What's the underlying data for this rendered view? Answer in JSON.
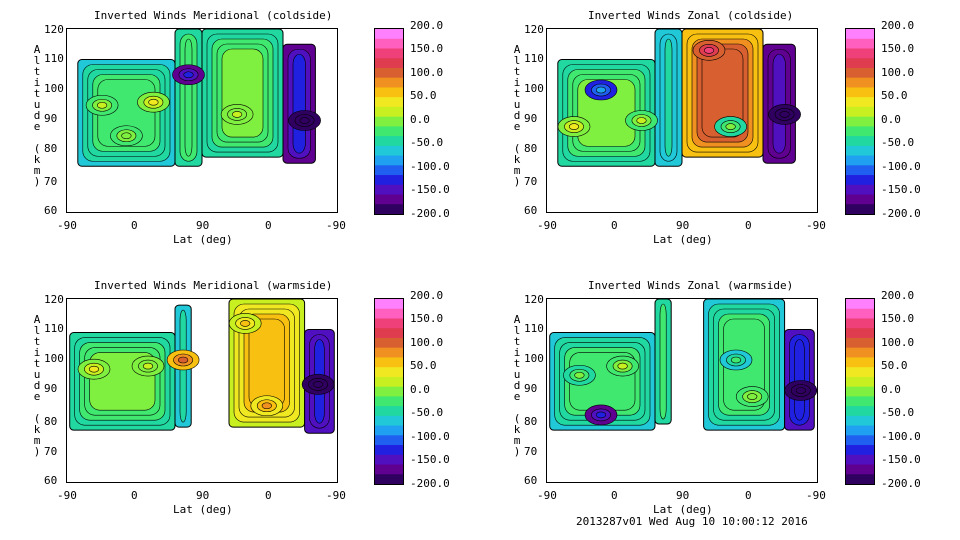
{
  "colorbar_levels": [
    "200.0",
    "150.0",
    "100.0",
    "50.0",
    "0.0",
    "-50.0",
    "-100.0",
    "-150.0",
    "-200.0"
  ],
  "colorbar_colors": [
    "#ff80ff",
    "#ff60c0",
    "#f0407a",
    "#e03c50",
    "#d86030",
    "#f09020",
    "#f8c010",
    "#f0e820",
    "#c8f020",
    "#80f040",
    "#40e870",
    "#20d8a0",
    "#20c8d8",
    "#20a0f0",
    "#2060f0",
    "#2020e0",
    "#5010c0",
    "#600090",
    "#300060"
  ],
  "footer": "2013287v01 Wed Aug 10 10:00:12 2016",
  "chart_data": [
    {
      "type": "contour",
      "title": "Inverted Winds Meridional (coldside)",
      "xlabel": "Lat (deg)",
      "ylabel": "Altitude (km)",
      "xticks": [
        "-90",
        "0",
        "90",
        "0",
        "-90"
      ],
      "yticks": [
        "120",
        "110",
        "100",
        "90",
        "80",
        "70",
        "60"
      ],
      "ylim": [
        60,
        120
      ],
      "colorbar_range": [
        -200,
        200
      ],
      "regions": [
        {
          "x0": 0.04,
          "x1": 0.4,
          "alt0": 75,
          "alt1": 110,
          "value": -60
        },
        {
          "x0": 0.4,
          "x1": 0.5,
          "alt0": 75,
          "alt1": 120,
          "value": -40
        },
        {
          "x0": 0.5,
          "x1": 0.8,
          "alt0": 78,
          "alt1": 120,
          "value": -50
        },
        {
          "x0": 0.8,
          "x1": 0.92,
          "alt0": 76,
          "alt1": 115,
          "value": -160
        }
      ],
      "features": [
        {
          "x": 0.13,
          "alt": 95,
          "value": 20
        },
        {
          "x": 0.32,
          "alt": 96,
          "value": 40
        },
        {
          "x": 0.63,
          "alt": 92,
          "value": 30
        },
        {
          "x": 0.22,
          "alt": 85,
          "value": 10
        },
        {
          "x": 0.45,
          "alt": 105,
          "value": -120
        },
        {
          "x": 0.88,
          "alt": 90,
          "value": -180
        }
      ]
    },
    {
      "type": "contour",
      "title": "Inverted Winds Zonal (coldside)",
      "xlabel": "Lat (deg)",
      "ylabel": "Altitude (km)",
      "xticks": [
        "-90",
        "0",
        "90",
        "0",
        "-90"
      ],
      "yticks": [
        "120",
        "110",
        "100",
        "90",
        "80",
        "70",
        "60"
      ],
      "ylim": [
        60,
        120
      ],
      "colorbar_range": [
        -200,
        200
      ],
      "regions": [
        {
          "x0": 0.04,
          "x1": 0.4,
          "alt0": 75,
          "alt1": 110,
          "value": -50
        },
        {
          "x0": 0.4,
          "x1": 0.5,
          "alt0": 75,
          "alt1": 120,
          "value": -70
        },
        {
          "x0": 0.5,
          "x1": 0.8,
          "alt0": 78,
          "alt1": 120,
          "value": 60
        },
        {
          "x0": 0.8,
          "x1": 0.92,
          "alt0": 76,
          "alt1": 115,
          "value": -170
        }
      ],
      "features": [
        {
          "x": 0.1,
          "alt": 88,
          "value": 50
        },
        {
          "x": 0.6,
          "alt": 113,
          "value": 150
        },
        {
          "x": 0.35,
          "alt": 90,
          "value": 20
        },
        {
          "x": 0.68,
          "alt": 88,
          "value": 0
        },
        {
          "x": 0.2,
          "alt": 100,
          "value": -80
        },
        {
          "x": 0.88,
          "alt": 92,
          "value": -190
        }
      ]
    },
    {
      "type": "contour",
      "title": "Inverted Winds Meridional (warmside)",
      "xlabel": "Lat (deg)",
      "ylabel": "Altitude (km)",
      "xticks": [
        "-90",
        "0",
        "90",
        "0",
        "-90"
      ],
      "yticks": [
        "120",
        "110",
        "100",
        "90",
        "80",
        "70",
        "60"
      ],
      "ylim": [
        60,
        120
      ],
      "colorbar_range": [
        -200,
        200
      ],
      "regions": [
        {
          "x0": 0.01,
          "x1": 0.4,
          "alt0": 77,
          "alt1": 109,
          "value": -50
        },
        {
          "x0": 0.4,
          "x1": 0.46,
          "alt0": 78,
          "alt1": 118,
          "value": -60
        },
        {
          "x0": 0.6,
          "x1": 0.88,
          "alt0": 78,
          "alt1": 120,
          "value": 20
        },
        {
          "x0": 0.88,
          "x1": 0.99,
          "alt0": 76,
          "alt1": 110,
          "value": -150
        }
      ],
      "features": [
        {
          "x": 0.1,
          "alt": 97,
          "value": 40
        },
        {
          "x": 0.3,
          "alt": 98,
          "value": 30
        },
        {
          "x": 0.66,
          "alt": 112,
          "value": 60
        },
        {
          "x": 0.74,
          "alt": 85,
          "value": 90
        },
        {
          "x": 0.43,
          "alt": 100,
          "value": 110
        },
        {
          "x": 0.93,
          "alt": 92,
          "value": -190
        }
      ]
    },
    {
      "type": "contour",
      "title": "Inverted Winds Zonal (warmside)",
      "xlabel": "Lat (deg)",
      "ylabel": "Altitude (km)",
      "xticks": [
        "-90",
        "0",
        "90",
        "0",
        "-90"
      ],
      "yticks": [
        "120",
        "110",
        "100",
        "90",
        "80",
        "70",
        "60"
      ],
      "ylim": [
        60,
        120
      ],
      "colorbar_range": [
        -200,
        200
      ],
      "regions": [
        {
          "x0": 0.01,
          "x1": 0.4,
          "alt0": 77,
          "alt1": 109,
          "value": -60
        },
        {
          "x0": 0.4,
          "x1": 0.46,
          "alt0": 79,
          "alt1": 120,
          "value": -40
        },
        {
          "x0": 0.58,
          "x1": 0.88,
          "alt0": 77,
          "alt1": 120,
          "value": -60
        },
        {
          "x0": 0.88,
          "x1": 0.99,
          "alt0": 77,
          "alt1": 110,
          "value": -140
        }
      ],
      "features": [
        {
          "x": 0.12,
          "alt": 95,
          "value": -10
        },
        {
          "x": 0.28,
          "alt": 98,
          "value": 20
        },
        {
          "x": 0.7,
          "alt": 100,
          "value": -30
        },
        {
          "x": 0.76,
          "alt": 88,
          "value": 10
        },
        {
          "x": 0.2,
          "alt": 82,
          "value": -120
        },
        {
          "x": 0.94,
          "alt": 90,
          "value": -190
        }
      ]
    }
  ]
}
